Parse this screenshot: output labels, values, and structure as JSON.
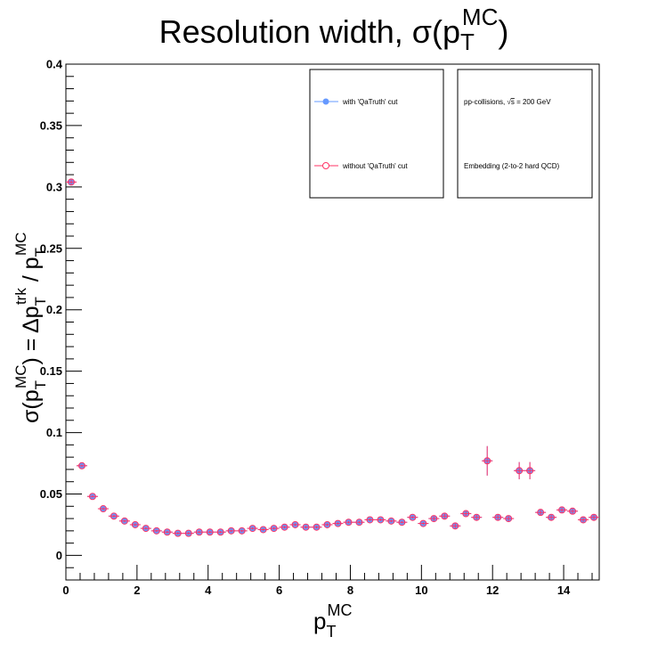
{
  "chart_data": {
    "type": "scatter",
    "title": "Resolution width, σ(p_T^MC)",
    "title_parts": {
      "main": "Resolution width, σ(p",
      "sub": "T",
      "sup": "MC",
      "close": ")"
    },
    "xlabel": "p_T^MC",
    "xlabel_parts": {
      "main": "p",
      "sub": "T",
      "sup": "MC"
    },
    "ylabel": "σ(p_T^MC) = Δp_T^trk / p_T^MC",
    "ylabel_parts": {
      "sigma": "σ(p",
      "sub1": "T",
      "sup1": "MC",
      "mid": ") = Δp",
      "sub2": "T",
      "sup2": "trk",
      "slash": " / p",
      "sub3": "T",
      "sup3": "MC"
    },
    "xlim": [
      0,
      15
    ],
    "ylim": [
      -0.02,
      0.4
    ],
    "xticks": [
      0,
      2,
      4,
      6,
      8,
      10,
      12,
      14
    ],
    "xtick_labels": [
      "0",
      "2",
      "4",
      "6",
      "8",
      "10",
      "12",
      "14"
    ],
    "yticks": [
      0,
      0.05,
      0.1,
      0.15,
      0.2,
      0.25,
      0.3,
      0.35,
      0.4
    ],
    "ytick_labels": [
      "0",
      "0.05",
      "0.1",
      "0.15",
      "0.2",
      "0.25",
      "0.3",
      "0.35",
      "0.4"
    ],
    "grid": false,
    "legend_position": "top-right",
    "legend": [
      {
        "label": "with 'QaTruth' cut",
        "color": "#6699ff",
        "marker": "filled-circle"
      },
      {
        "label": "without 'QaTruth' cut",
        "color": "#ff3366",
        "marker": "open-circle"
      }
    ],
    "info_box": {
      "line1_prefix": "pp-collisions, ",
      "line1_sqrt": "s",
      "line1_suffix": " = 200 GeV",
      "line2": "Embedding (2-to-2 hard QCD)"
    },
    "series": [
      {
        "name": "with 'QaTruth' cut",
        "color": "#6699ff",
        "x": [
          0.15,
          0.45,
          0.75,
          1.05,
          1.35,
          1.65,
          1.95,
          2.25,
          2.55,
          2.85,
          3.15,
          3.45,
          3.75,
          4.05,
          4.35,
          4.65,
          4.95,
          5.25,
          5.55,
          5.85,
          6.15,
          6.45,
          6.75,
          7.05,
          7.35,
          7.65,
          7.95,
          8.25,
          8.55,
          8.85,
          9.15,
          9.45,
          9.75,
          10.05,
          10.35,
          10.65,
          10.95,
          11.25,
          11.55,
          11.85,
          12.15,
          12.45,
          12.75,
          13.05,
          13.35,
          13.65,
          13.95,
          14.25,
          14.55,
          14.85
        ],
        "y": [
          0.304,
          0.073,
          0.048,
          0.038,
          0.032,
          0.028,
          0.025,
          0.022,
          0.02,
          0.019,
          0.018,
          0.018,
          0.019,
          0.019,
          0.019,
          0.02,
          0.02,
          0.022,
          0.021,
          0.022,
          0.023,
          0.025,
          0.023,
          0.023,
          0.025,
          0.026,
          0.027,
          0.027,
          0.029,
          0.029,
          0.028,
          0.027,
          0.031,
          0.026,
          0.03,
          0.032,
          0.024,
          0.034,
          0.031,
          0.077,
          0.031,
          0.03,
          0.069,
          0.069,
          0.035,
          0.031,
          0.037,
          0.036,
          0.029,
          0.031
        ],
        "yerr": [
          0.002,
          0.001,
          0.001,
          0.001,
          0.001,
          0.001,
          0.001,
          0.001,
          0.001,
          0.001,
          0.001,
          0.001,
          0.001,
          0.001,
          0.001,
          0.001,
          0.001,
          0.001,
          0.001,
          0.001,
          0.001,
          0.001,
          0.001,
          0.001,
          0.001,
          0.001,
          0.001,
          0.001,
          0.001,
          0.001,
          0.001,
          0.001,
          0.001,
          0.001,
          0.002,
          0.002,
          0.002,
          0.002,
          0.002,
          0.012,
          0.002,
          0.002,
          0.007,
          0.007,
          0.002,
          0.002,
          0.002,
          0.002,
          0.002,
          0.002
        ]
      },
      {
        "name": "without 'QaTruth' cut",
        "color": "#ff3366",
        "x": [
          0.15,
          0.45,
          0.75,
          1.05,
          1.35,
          1.65,
          1.95,
          2.25,
          2.55,
          2.85,
          3.15,
          3.45,
          3.75,
          4.05,
          4.35,
          4.65,
          4.95,
          5.25,
          5.55,
          5.85,
          6.15,
          6.45,
          6.75,
          7.05,
          7.35,
          7.65,
          7.95,
          8.25,
          8.55,
          8.85,
          9.15,
          9.45,
          9.75,
          10.05,
          10.35,
          10.65,
          10.95,
          11.25,
          11.55,
          11.85,
          12.15,
          12.45,
          12.75,
          13.05,
          13.35,
          13.65,
          13.95,
          14.25,
          14.55,
          14.85
        ],
        "y": [
          0.304,
          0.073,
          0.048,
          0.038,
          0.032,
          0.028,
          0.025,
          0.022,
          0.02,
          0.019,
          0.018,
          0.018,
          0.019,
          0.019,
          0.019,
          0.02,
          0.02,
          0.022,
          0.021,
          0.022,
          0.023,
          0.025,
          0.023,
          0.023,
          0.025,
          0.026,
          0.027,
          0.027,
          0.029,
          0.029,
          0.028,
          0.027,
          0.031,
          0.026,
          0.03,
          0.032,
          0.024,
          0.034,
          0.031,
          0.077,
          0.031,
          0.03,
          0.069,
          0.069,
          0.035,
          0.031,
          0.037,
          0.036,
          0.029,
          0.031
        ],
        "yerr": [
          0.002,
          0.001,
          0.001,
          0.001,
          0.001,
          0.001,
          0.001,
          0.001,
          0.001,
          0.001,
          0.001,
          0.001,
          0.001,
          0.001,
          0.001,
          0.001,
          0.001,
          0.001,
          0.001,
          0.001,
          0.001,
          0.001,
          0.001,
          0.001,
          0.001,
          0.001,
          0.001,
          0.001,
          0.001,
          0.001,
          0.001,
          0.001,
          0.001,
          0.001,
          0.002,
          0.002,
          0.002,
          0.002,
          0.002,
          0.012,
          0.002,
          0.002,
          0.007,
          0.007,
          0.002,
          0.002,
          0.002,
          0.002,
          0.002,
          0.002
        ]
      }
    ]
  }
}
